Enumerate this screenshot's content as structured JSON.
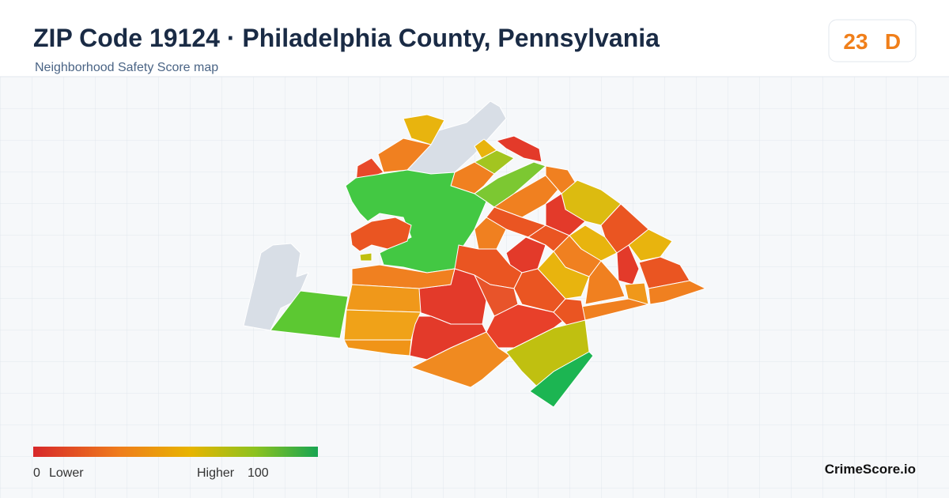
{
  "header": {
    "title": "ZIP Code 19124 · Philadelphia County, Pennsylvania",
    "subtitle": "Neighborhood Safety Score map"
  },
  "badge": {
    "score": 23,
    "grade": "D"
  },
  "legend": {
    "min": 0,
    "min_label": "Lower",
    "max_label": "Higher",
    "max": 100
  },
  "footer": {
    "brand": "CrimeScore.io"
  }
}
